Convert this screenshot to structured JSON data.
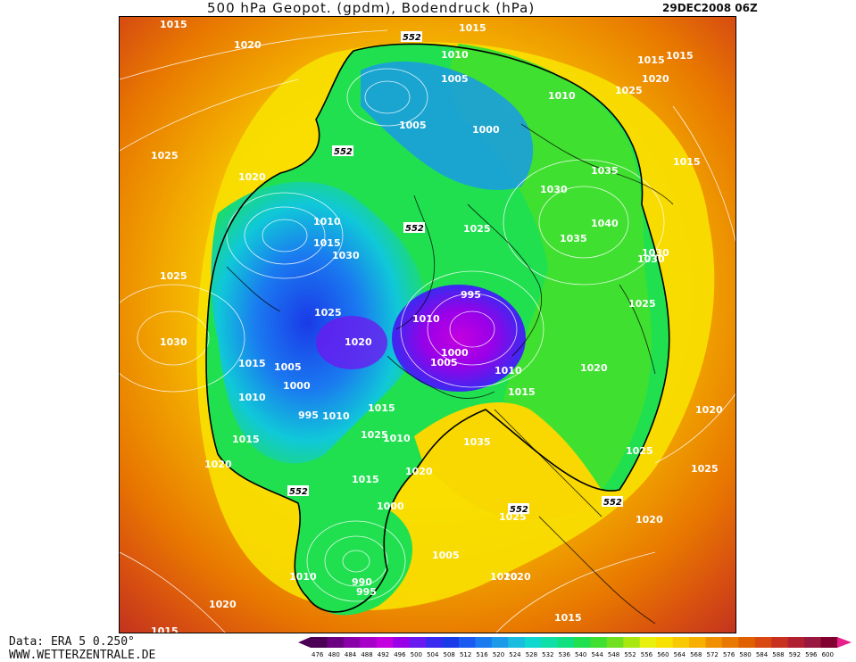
{
  "header": {
    "title": "500 hPa Geopot. (gpdm), Bodendruck (hPa)",
    "datetime": "29DEC2008 06Z"
  },
  "footer": {
    "data_source": "Data: ERA 5 0.250°",
    "website": "WWW.WETTERZENTRALE.DE"
  },
  "legend": {
    "ticks": [
      "476",
      "480",
      "484",
      "488",
      "492",
      "496",
      "500",
      "504",
      "508",
      "512",
      "516",
      "520",
      "524",
      "528",
      "532",
      "536",
      "540",
      "544",
      "548",
      "552",
      "556",
      "560",
      "564",
      "568",
      "572",
      "576",
      "580",
      "584",
      "588",
      "592",
      "596",
      "600"
    ],
    "colors": [
      "#4b0055",
      "#6a0080",
      "#8a00a8",
      "#a800c8",
      "#c400e0",
      "#9a00e8",
      "#6a1af0",
      "#3a2af0",
      "#1a3ae8",
      "#1a5af0",
      "#1a7af0",
      "#1a9ae8",
      "#1abce0",
      "#10d8d0",
      "#10e0a8",
      "#10e080",
      "#20e050",
      "#40e030",
      "#70e020",
      "#a8e810",
      "#e8f010",
      "#f8e000",
      "#f8c800",
      "#f8b000",
      "#f09000",
      "#e87800",
      "#e06000",
      "#d84810",
      "#c83020",
      "#b02030",
      "#981840",
      "#800030"
    ],
    "arrow_left_color": "#4b0055",
    "arrow_right_color": "#e8208c"
  },
  "map": {
    "contour_552_label": "552",
    "pressure_labels": [
      {
        "text": "1015"
      },
      {
        "text": "1020"
      },
      {
        "text": "1015"
      },
      {
        "text": "1025"
      },
      {
        "text": "1010"
      },
      {
        "text": "1005"
      },
      {
        "text": "1005"
      },
      {
        "text": "1000"
      },
      {
        "text": "1010"
      },
      {
        "text": "1015"
      },
      {
        "text": "1020"
      },
      {
        "text": "1025"
      },
      {
        "text": "1030"
      },
      {
        "text": "1035"
      },
      {
        "text": "1040"
      },
      {
        "text": "1020"
      },
      {
        "text": "1010"
      },
      {
        "text": "1015"
      },
      {
        "text": "995"
      },
      {
        "text": "1000"
      },
      {
        "text": "1005"
      },
      {
        "text": "1010"
      },
      {
        "text": "1025"
      },
      {
        "text": "1020"
      },
      {
        "text": "1015"
      },
      {
        "text": "1010"
      },
      {
        "text": "1000"
      },
      {
        "text": "995"
      },
      {
        "text": "1005"
      },
      {
        "text": "1010"
      },
      {
        "text": "1015"
      },
      {
        "text": "1020"
      },
      {
        "text": "1025"
      },
      {
        "text": "1030"
      },
      {
        "text": "1035"
      },
      {
        "text": "1000"
      },
      {
        "text": "990"
      },
      {
        "text": "995"
      },
      {
        "text": "1005"
      },
      {
        "text": "1010"
      },
      {
        "text": "1015"
      },
      {
        "text": "1020"
      },
      {
        "text": "1025"
      },
      {
        "text": "1020"
      },
      {
        "text": "1015"
      },
      {
        "text": "1010"
      },
      {
        "text": "1015"
      },
      {
        "text": "1020"
      },
      {
        "text": "1025"
      },
      {
        "text": "1030"
      },
      {
        "text": "1020"
      },
      {
        "text": "1025"
      },
      {
        "text": "1015"
      },
      {
        "text": "1020"
      },
      {
        "text": "1010"
      },
      {
        "text": "1015"
      },
      {
        "text": "1025"
      },
      {
        "text": "1020"
      },
      {
        "text": "1025"
      },
      {
        "text": "1020"
      },
      {
        "text": "1015"
      },
      {
        "text": "1035"
      },
      {
        "text": "1030"
      },
      {
        "text": "1015"
      },
      {
        "text": "1025"
      },
      {
        "text": "1030"
      }
    ]
  }
}
